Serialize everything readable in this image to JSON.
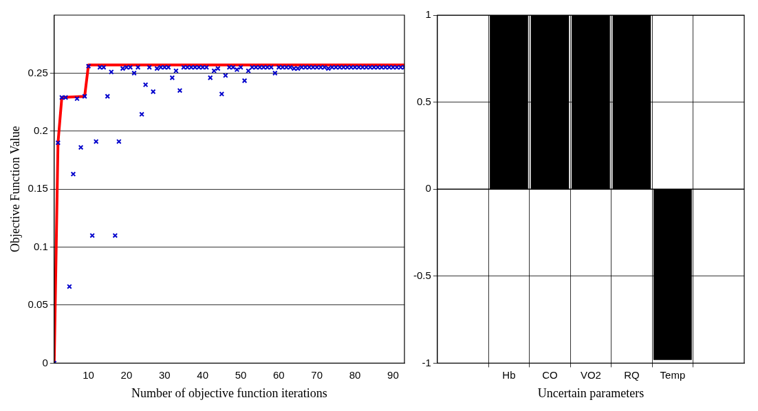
{
  "chart_data": [
    {
      "type": "scatter",
      "xlabel": "Number of objective function iterations",
      "ylabel": "Objective Function Value",
      "xlim": [
        1,
        93
      ],
      "xticks": [
        10,
        20,
        30,
        40,
        50,
        60,
        70,
        80,
        90
      ],
      "ylim": [
        0,
        0.3
      ],
      "yticks": [
        0,
        0.05,
        0.1,
        0.15,
        0.2,
        0.25
      ],
      "grid": "y",
      "legend": false,
      "series": [
        {
          "type": "scatter",
          "color": "#0000cc",
          "marker": "cross",
          "x": [
            1,
            2,
            3,
            4,
            5,
            6,
            7,
            8,
            9,
            10,
            11,
            12,
            13,
            14,
            15,
            16,
            17,
            18,
            19,
            20,
            21,
            22,
            23,
            24,
            25,
            26,
            27,
            28,
            29,
            30,
            31,
            32,
            33,
            34,
            35,
            36,
            37,
            38,
            39,
            40,
            41,
            42,
            43,
            44,
            45,
            46,
            47,
            48,
            49,
            50,
            51,
            52,
            53,
            54,
            55,
            56,
            57,
            58,
            59,
            60,
            61,
            62,
            63,
            64,
            65,
            66,
            67,
            68,
            69,
            70,
            71,
            72,
            73,
            74,
            75,
            76,
            77,
            78,
            79,
            80,
            81,
            82,
            83,
            84,
            85,
            86,
            87,
            88,
            89,
            90,
            91,
            92,
            93
          ],
          "values": [
            0,
            0.19,
            0.229,
            0.229,
            0.066,
            0.163,
            0.228,
            0.186,
            0.23,
            0.256,
            0.11,
            0.191,
            0.255,
            0.255,
            0.23,
            0.251,
            0.11,
            0.191,
            0.254,
            0.255,
            0.255,
            0.25,
            0.255,
            0.2145,
            0.24,
            0.255,
            0.234,
            0.254,
            0.255,
            0.255,
            0.255,
            0.246,
            0.252,
            0.235,
            0.255,
            0.255,
            0.255,
            0.255,
            0.255,
            0.255,
            0.255,
            0.246,
            0.252,
            0.254,
            0.232,
            0.248,
            0.255,
            0.255,
            0.253,
            0.255,
            0.2435,
            0.252,
            0.255,
            0.255,
            0.255,
            0.255,
            0.255,
            0.255,
            0.25,
            0.255,
            0.255,
            0.255,
            0.255,
            0.254,
            0.254,
            0.255,
            0.255,
            0.255,
            0.255,
            0.255,
            0.255,
            0.255,
            0.254,
            0.255,
            0.255,
            0.255,
            0.255,
            0.255,
            0.255,
            0.255,
            0.255,
            0.255,
            0.255,
            0.255,
            0.255,
            0.255,
            0.255,
            0.255,
            0.255,
            0.255,
            0.255,
            0.255,
            0.255
          ]
        },
        {
          "type": "line",
          "color": "#ff0000",
          "marker": "none",
          "line_style": "solid",
          "x": [
            1,
            2,
            3,
            9,
            10,
            93
          ],
          "values": [
            0,
            0.19,
            0.229,
            0.23,
            0.257,
            0.257
          ]
        }
      ]
    },
    {
      "type": "bar",
      "xlabel": "Uncertain parameters",
      "categories": [
        "Hb",
        "CO",
        "VO2",
        "RQ",
        "Temp"
      ],
      "values": [
        1,
        1,
        1,
        1,
        -0.98
      ],
      "color": "#000000",
      "ylim": [
        -1,
        1
      ],
      "yticks": [
        -1,
        -0.5,
        0,
        0.5,
        1
      ],
      "grid": true,
      "legend": false
    }
  ]
}
